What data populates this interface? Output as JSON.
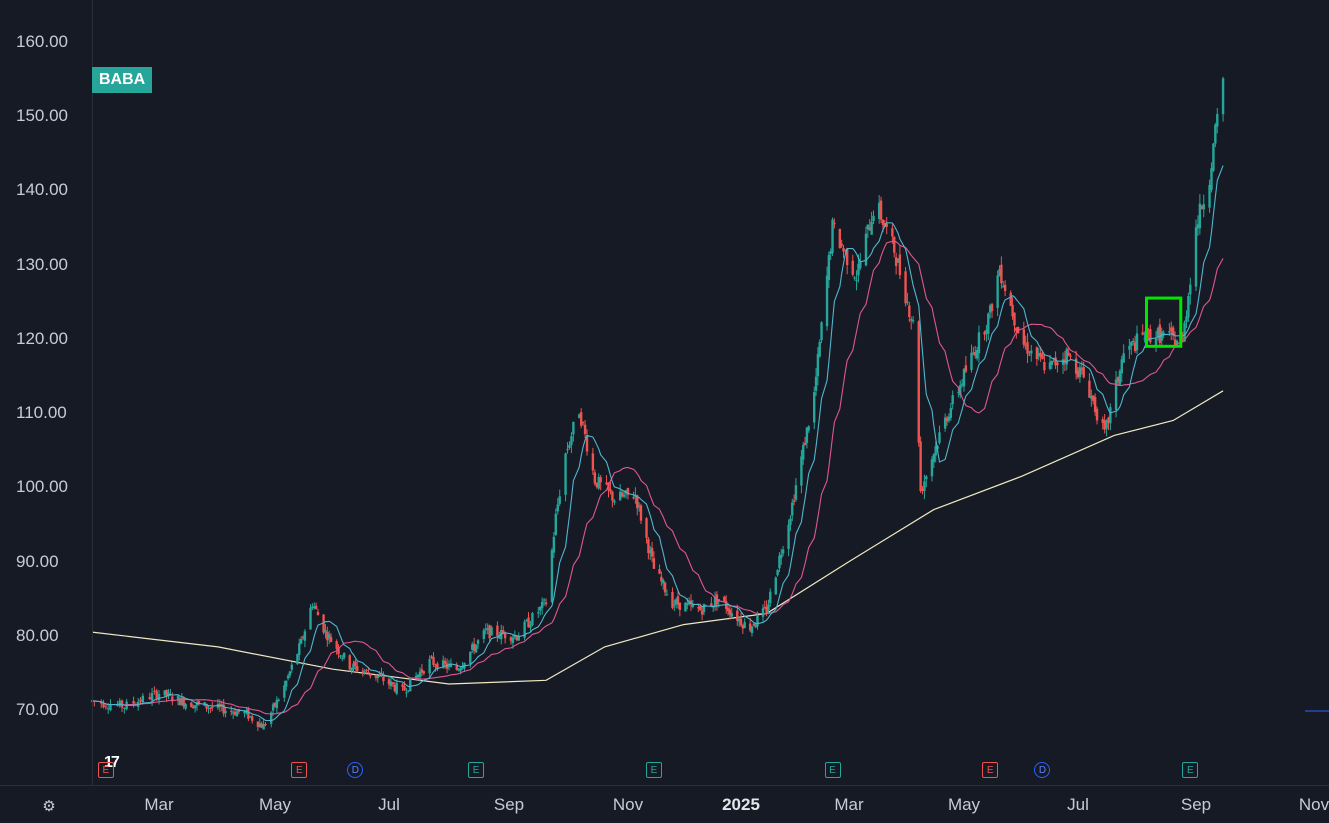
{
  "symbol": "BABA",
  "brand": "17",
  "settings_icon": "gear-icon",
  "colors": {
    "up": "#26a69a",
    "down": "#ef5350",
    "ma_fast": "#4fb6cf",
    "ma_mid": "#e0568f",
    "ma_long": "#efe9c2",
    "highlight_box": "#00e600",
    "background": "#161a25"
  },
  "chart_data": {
    "type": "candlestick",
    "y_axis": {
      "ticks": [
        "160.00",
        "150.00",
        "140.00",
        "130.00",
        "120.00",
        "110.00",
        "100.00",
        "90.00",
        "80.00",
        "70.00"
      ],
      "range": [
        62,
        162
      ]
    },
    "x_axis": {
      "ticks": [
        "Mar",
        "May",
        "Jul",
        "Sep",
        "Nov",
        "2025",
        "Mar",
        "May",
        "Jul",
        "Sep",
        "Nov"
      ]
    },
    "price_path": [
      [
        "2024-02-01",
        71.2
      ],
      [
        "2024-02-15",
        70.5
      ],
      [
        "2024-03-01",
        72.3
      ],
      [
        "2024-03-15",
        71.0
      ],
      [
        "2024-04-01",
        70.2
      ],
      [
        "2024-04-15",
        69.6
      ],
      [
        "2024-04-25",
        67.8
      ],
      [
        "2024-05-05",
        72.5
      ],
      [
        "2024-05-15",
        79.0
      ],
      [
        "2024-05-21",
        84.5
      ],
      [
        "2024-05-28",
        80.5
      ],
      [
        "2024-06-10",
        76.0
      ],
      [
        "2024-06-25",
        74.5
      ],
      [
        "2024-07-08",
        72.5
      ],
      [
        "2024-07-22",
        76.5
      ],
      [
        "2024-08-05",
        75.5
      ],
      [
        "2024-08-20",
        80.5
      ],
      [
        "2024-09-05",
        80.0
      ],
      [
        "2024-09-20",
        84.5
      ],
      [
        "2024-09-25",
        96.0
      ],
      [
        "2024-09-30",
        104.5
      ],
      [
        "2024-10-07",
        110.5
      ],
      [
        "2024-10-15",
        101.0
      ],
      [
        "2024-10-25",
        98.5
      ],
      [
        "2024-11-05",
        99.0
      ],
      [
        "2024-11-15",
        89.0
      ],
      [
        "2024-11-25",
        84.5
      ],
      [
        "2024-12-10",
        83.5
      ],
      [
        "2024-12-20",
        85.0
      ],
      [
        "2025-01-05",
        81.0
      ],
      [
        "2025-01-15",
        83.5
      ],
      [
        "2025-01-28",
        96.5
      ],
      [
        "2025-02-10",
        112.5
      ],
      [
        "2025-02-20",
        135.0
      ],
      [
        "2025-03-05",
        128.5
      ],
      [
        "2025-03-15",
        138.5
      ],
      [
        "2025-03-25",
        132.0
      ],
      [
        "2025-04-05",
        121.0
      ],
      [
        "2025-04-08",
        99.5
      ],
      [
        "2025-04-20",
        108.5
      ],
      [
        "2025-05-05",
        117.5
      ],
      [
        "2025-05-15",
        123.5
      ],
      [
        "2025-05-20",
        129.5
      ],
      [
        "2025-06-01",
        119.5
      ],
      [
        "2025-06-15",
        116.0
      ],
      [
        "2025-06-25",
        118.0
      ],
      [
        "2025-07-05",
        114.5
      ],
      [
        "2025-07-15",
        107.0
      ],
      [
        "2025-07-25",
        118.0
      ],
      [
        "2025-08-05",
        120.5
      ],
      [
        "2025-08-15",
        120.5
      ],
      [
        "2025-08-25",
        119.5
      ],
      [
        "2025-09-01",
        135.0
      ],
      [
        "2025-09-08",
        142.0
      ],
      [
        "2025-09-15",
        155.0
      ]
    ],
    "ma_200_path": [
      [
        "2024-02-01",
        80.5
      ],
      [
        "2024-04-01",
        78.5
      ],
      [
        "2024-06-01",
        75.5
      ],
      [
        "2024-08-01",
        73.5
      ],
      [
        "2024-09-20",
        74.0
      ],
      [
        "2024-10-20",
        78.5
      ],
      [
        "2024-12-01",
        81.5
      ],
      [
        "2025-01-15",
        83.0
      ],
      [
        "2025-03-01",
        90.0
      ],
      [
        "2025-04-15",
        97.0
      ],
      [
        "2025-06-01",
        101.5
      ],
      [
        "2025-07-20",
        107.0
      ],
      [
        "2025-08-20",
        109.0
      ],
      [
        "2025-09-15",
        113.0
      ]
    ],
    "highlight_box": {
      "x0": "2025-08-06",
      "x1": "2025-08-24",
      "y0": 119.0,
      "y1": 125.5
    }
  },
  "events": [
    {
      "type": "E",
      "kind": "earnings-down",
      "date": "2024-02-07"
    },
    {
      "type": "E",
      "kind": "earnings-down",
      "date": "2024-05-14"
    },
    {
      "type": "D",
      "kind": "dividend",
      "date": "2024-06-13"
    },
    {
      "type": "E",
      "kind": "earnings-up",
      "date": "2024-08-15"
    },
    {
      "type": "E",
      "kind": "earnings-up",
      "date": "2024-11-15"
    },
    {
      "type": "E",
      "kind": "earnings-up",
      "date": "2025-02-20"
    },
    {
      "type": "E",
      "kind": "earnings-down",
      "date": "2025-05-15"
    },
    {
      "type": "D",
      "kind": "dividend",
      "date": "2025-06-12"
    },
    {
      "type": "E",
      "kind": "earnings-up",
      "date": "2025-08-29"
    }
  ]
}
